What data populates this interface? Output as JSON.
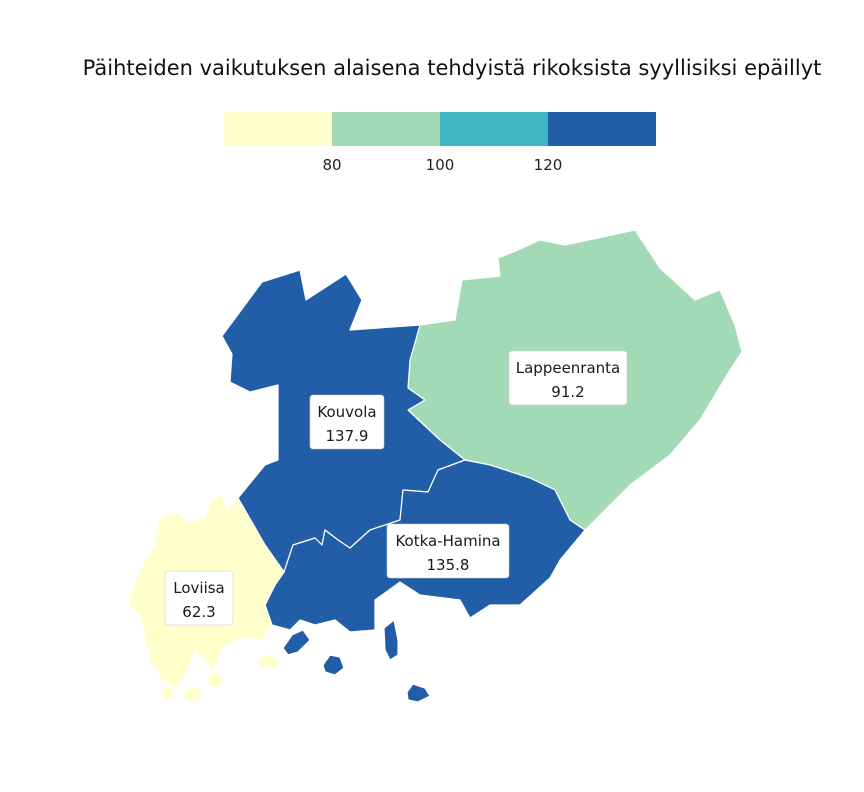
{
  "title": "Päihteiden vaikutuksen alaisena tehdyistä rikoksista syyllisiksi epäillyt",
  "colors": {
    "class1": "#ffffcc",
    "class2": "#a1dab4",
    "class3": "#41b6c4",
    "class4": "#225ea8"
  },
  "legend": {
    "bins": [
      {
        "color": "#ffffcc"
      },
      {
        "color": "#a1dab4"
      },
      {
        "color": "#41b6c4"
      },
      {
        "color": "#225ea8"
      }
    ],
    "ticks": [
      "80",
      "100",
      "120"
    ]
  },
  "regions": [
    {
      "name": "Lappeenranta",
      "value": "91.2",
      "color": "#a1dab4"
    },
    {
      "name": "Kouvola",
      "value": "137.9",
      "color": "#225ea8"
    },
    {
      "name": "Kotka-Hamina",
      "value": "135.8",
      "color": "#225ea8"
    },
    {
      "name": "Loviisa",
      "value": "62.3",
      "color": "#ffffcc"
    }
  ]
}
